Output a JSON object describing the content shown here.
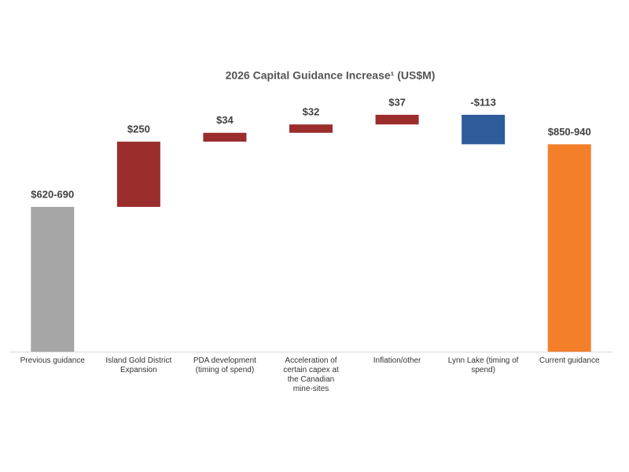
{
  "chart_data": {
    "type": "waterfall",
    "title": "2026 Capital Guidance Increase¹ (US$M)",
    "categories": [
      "Previous guidance",
      "Island Gold District Expansion",
      "PDA development (timing of spend)",
      "Acceleration of certain capex at the Canadian mine-sites",
      "Inflation/other",
      "Lynn Lake (timing of spend)",
      "Current  guidance"
    ],
    "values": [
      655,
      250,
      34,
      32,
      37,
      -113,
      895
    ],
    "value_labels": [
      "$620-690",
      "$250",
      "$34",
      "$32",
      "$37",
      "-$113",
      "$850-940"
    ],
    "measure": [
      "absolute",
      "relative",
      "relative",
      "relative",
      "relative",
      "relative",
      "absolute"
    ],
    "colors": [
      "#a6a6a6",
      "#9b2d2d",
      "#9b2d2d",
      "#9b2d2d",
      "#9b2d2d",
      "#2e5c9a",
      "#f47f2a"
    ],
    "ylim": [
      100,
      1050
    ]
  }
}
